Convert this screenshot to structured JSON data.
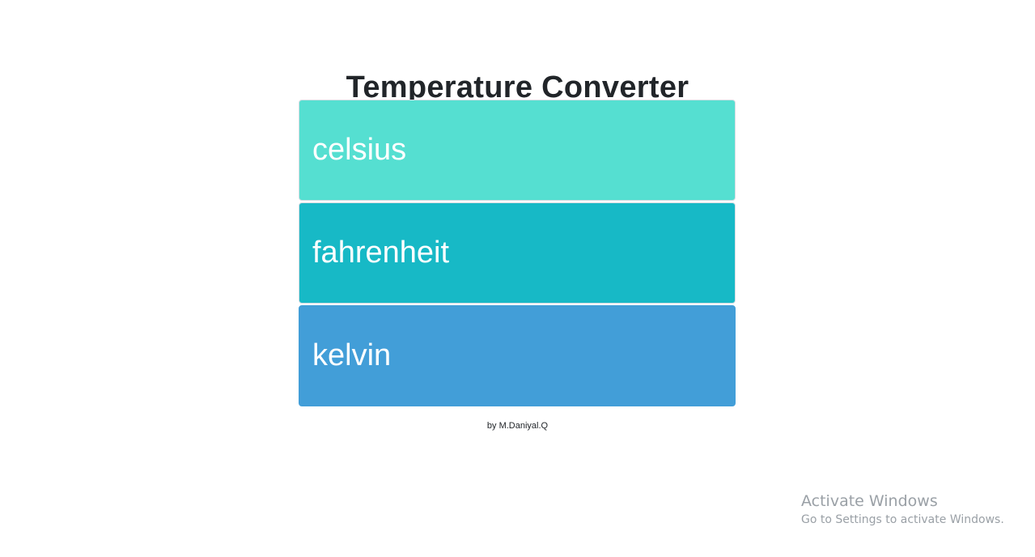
{
  "page": {
    "title": "Temperature Converter",
    "credit": "by M.Daniyal.Q"
  },
  "inputs": {
    "celsius": {
      "placeholder": "celsius",
      "value": "",
      "color": "#55dfd1"
    },
    "fahrenheit": {
      "placeholder": "fahrenheit",
      "value": "",
      "color": "#17b9c6"
    },
    "kelvin": {
      "placeholder": "kelvin",
      "value": "",
      "color": "#429ed8"
    }
  },
  "watermark": {
    "line1": "Activate Windows",
    "line2": "Go to Settings to activate Windows."
  }
}
